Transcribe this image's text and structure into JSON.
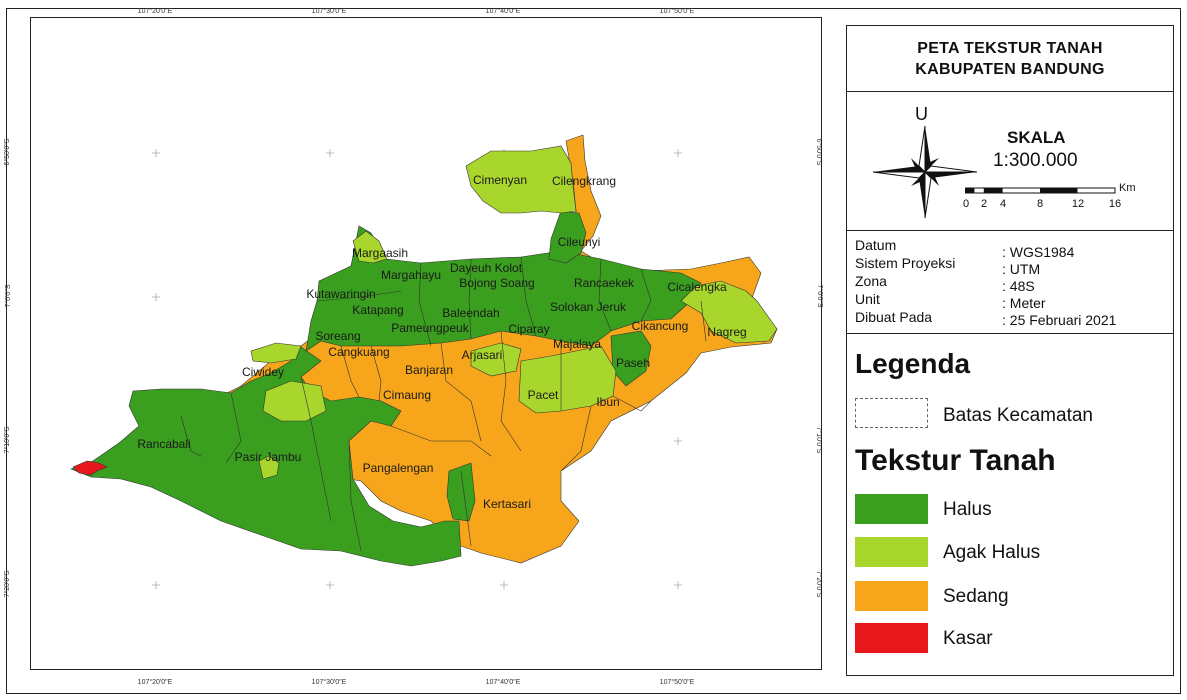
{
  "coords": {
    "top": [
      "107°20'0\"E",
      "107°30'0\"E",
      "107°40'0\"E",
      "107°50'0\"E"
    ],
    "bottom": [
      "107°20'0\"E",
      "107°30'0\"E",
      "107°40'0\"E",
      "107°50'0\"E"
    ],
    "left": [
      "6°50'0\"S",
      "7°0'0\"S",
      "7°10'0\"S",
      "7°20'0\"S"
    ],
    "right": [
      "6°50'0\"S",
      "7°0'0\"S",
      "7°10'0\"S",
      "7°20'0\"S"
    ]
  },
  "title": {
    "line1": "PETA TEKSTUR TANAH",
    "line2": "KABUPATEN BANDUNG"
  },
  "north": {
    "letter": "U"
  },
  "scale": {
    "title": "SKALA",
    "value": "1:300.000",
    "unit": "Km",
    "ticks": [
      "0",
      "2",
      "4",
      "8",
      "12",
      "16"
    ]
  },
  "info": [
    {
      "label": "Datum",
      "value": ": WGS1984"
    },
    {
      "label": "Sistem Proyeksi",
      "value": ": UTM"
    },
    {
      "label": "Zona",
      "value": ": 48S"
    },
    {
      "label": "Unit",
      "value": ": Meter"
    },
    {
      "label": "Dibuat Pada",
      "value": ": 25 Februari 2021"
    }
  ],
  "legend": {
    "heading": "Legenda",
    "boundary_label": "Batas Kecamatan",
    "texture_heading": "Tekstur Tanah",
    "items": [
      {
        "label": "Halus",
        "color": "#3a9e1e"
      },
      {
        "label": "Agak Halus",
        "color": "#a8d62c"
      },
      {
        "label": "Sedang",
        "color": "#f7a61b"
      },
      {
        "label": "Kasar",
        "color": "#e8171c"
      }
    ]
  },
  "districts": [
    "Cimenyan",
    "Cilengkrang",
    "Cileunyi",
    "Margaasih",
    "Margahayu",
    "Dayeuh Kolot",
    "Bojong Soang",
    "Rancaekek",
    "Cicalengka",
    "Kutawaringin",
    "Katapang",
    "Baleendah",
    "Solokan Jeruk",
    "Pameungpeuk",
    "Cikancung",
    "Nagreg",
    "Soreang",
    "Ciparay",
    "Cangkuang",
    "Arjasari",
    "Majalaya",
    "Paseh",
    "Ciwidey",
    "Banjaran",
    "Cimaung",
    "Pacet",
    "Ibun",
    "Rancabali",
    "Pasir Jambu",
    "Pangalengan",
    "Kertasari"
  ]
}
